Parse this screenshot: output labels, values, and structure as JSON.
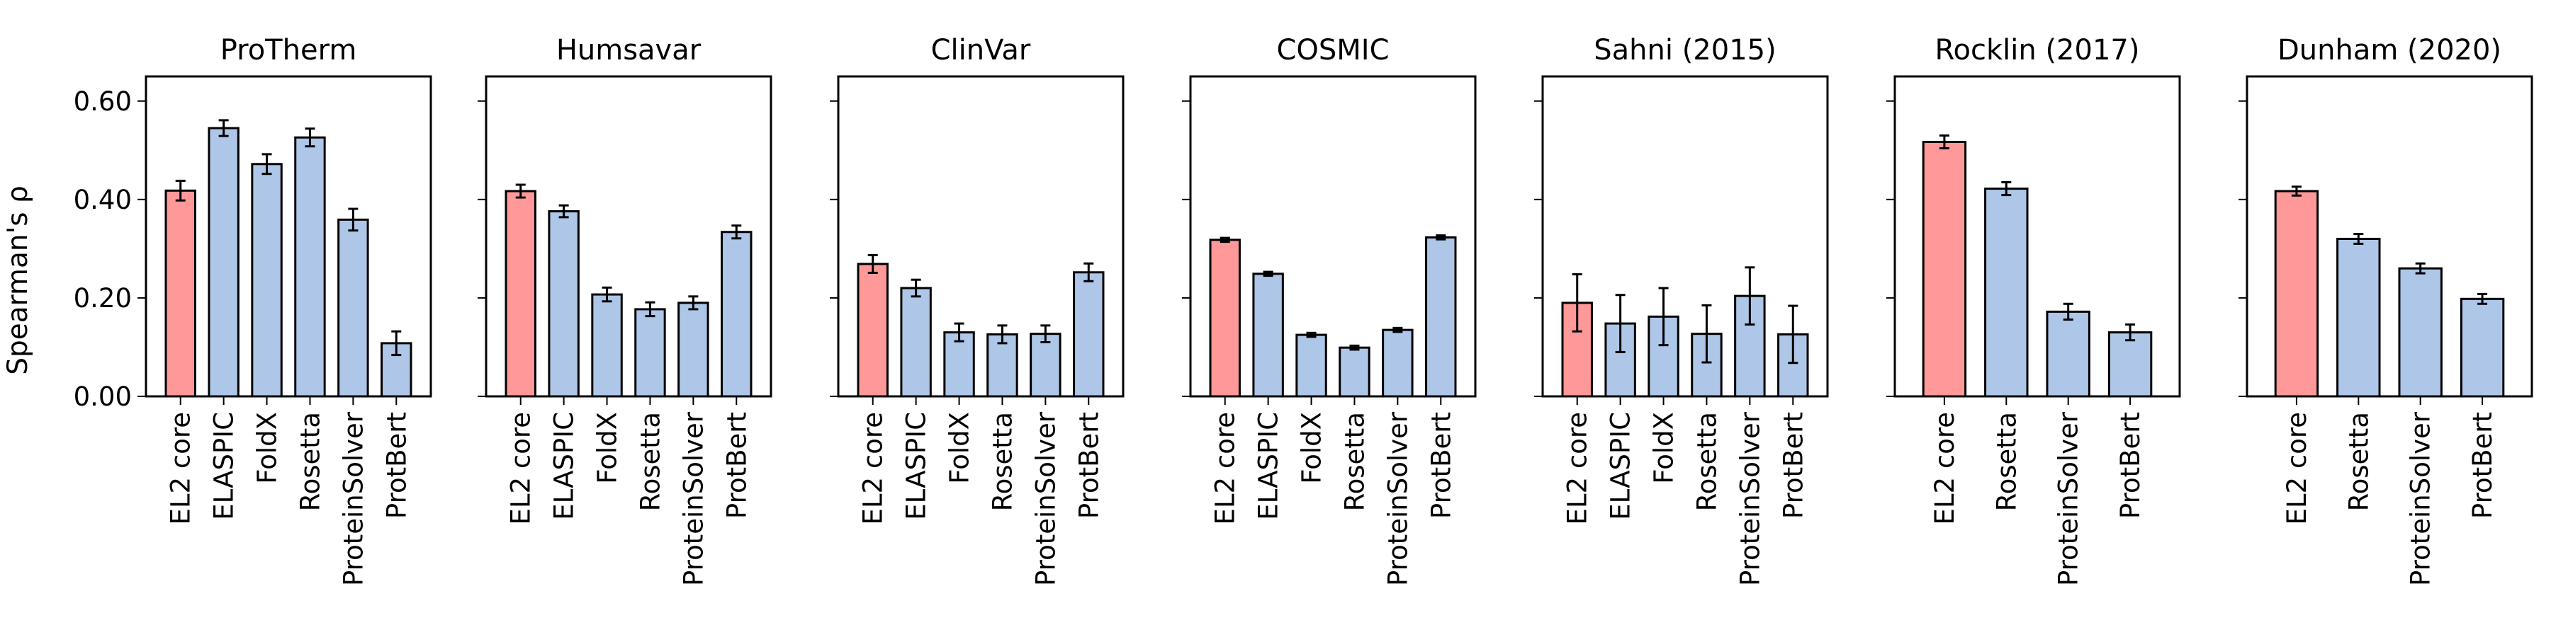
{
  "figure": {
    "ylabel": "Spearman's ρ",
    "yticks": [
      "0.00",
      "0.20",
      "0.40",
      "0.60"
    ]
  },
  "colors": {
    "highlight": "#FF9999",
    "default": "#AEC7E8",
    "edge": "#000000"
  },
  "chart_data": [
    {
      "type": "bar",
      "title": "ProTherm",
      "categories": [
        "EL2 core",
        "ELASPIC",
        "FoldX",
        "Rosetta",
        "ProteinSolver",
        "ProtBert"
      ],
      "values": [
        0.418,
        0.545,
        0.472,
        0.526,
        0.359,
        0.108
      ],
      "errors": [
        0.02,
        0.016,
        0.02,
        0.018,
        0.022,
        0.024
      ],
      "ylim": [
        0,
        0.65
      ],
      "grid": false
    },
    {
      "type": "bar",
      "title": "Humsavar",
      "categories": [
        "EL2 core",
        "ELASPIC",
        "FoldX",
        "Rosetta",
        "ProteinSolver",
        "ProtBert"
      ],
      "values": [
        0.417,
        0.376,
        0.207,
        0.177,
        0.19,
        0.334
      ],
      "errors": [
        0.013,
        0.012,
        0.014,
        0.014,
        0.013,
        0.013
      ],
      "ylim": [
        0,
        0.65
      ],
      "grid": false
    },
    {
      "type": "bar",
      "title": "ClinVar",
      "categories": [
        "EL2 core",
        "ELASPIC",
        "FoldX",
        "Rosetta",
        "ProteinSolver",
        "ProtBert"
      ],
      "values": [
        0.269,
        0.22,
        0.13,
        0.126,
        0.127,
        0.252
      ],
      "errors": [
        0.018,
        0.017,
        0.018,
        0.018,
        0.017,
        0.018
      ],
      "ylim": [
        0,
        0.65
      ],
      "grid": false
    },
    {
      "type": "bar",
      "title": "COSMIC",
      "categories": [
        "EL2 core",
        "ELASPIC",
        "FoldX",
        "Rosetta",
        "ProteinSolver",
        "ProtBert"
      ],
      "values": [
        0.318,
        0.249,
        0.125,
        0.099,
        0.135,
        0.323
      ],
      "errors": [
        0.004,
        0.004,
        0.004,
        0.004,
        0.004,
        0.004
      ],
      "ylim": [
        0,
        0.65
      ],
      "grid": false
    },
    {
      "type": "bar",
      "title": "Sahni (2015)",
      "categories": [
        "EL2 core",
        "ELASPIC",
        "FoldX",
        "Rosetta",
        "ProteinSolver",
        "ProtBert"
      ],
      "values": [
        0.19,
        0.148,
        0.162,
        0.127,
        0.204,
        0.126
      ],
      "errors": [
        0.058,
        0.058,
        0.058,
        0.058,
        0.058,
        0.058
      ],
      "ylim": [
        0,
        0.65
      ],
      "grid": false
    },
    {
      "type": "bar",
      "title": "Rocklin (2017)",
      "categories": [
        "EL2 core",
        "Rosetta",
        "ProteinSolver",
        "ProtBert"
      ],
      "values": [
        0.517,
        0.422,
        0.172,
        0.13
      ],
      "errors": [
        0.013,
        0.013,
        0.016,
        0.016
      ],
      "ylim": [
        0,
        0.65
      ],
      "grid": false
    },
    {
      "type": "bar",
      "title": "Dunham (2020)",
      "categories": [
        "EL2 core",
        "Rosetta",
        "ProteinSolver",
        "ProtBert"
      ],
      "values": [
        0.417,
        0.32,
        0.26,
        0.198
      ],
      "errors": [
        0.009,
        0.01,
        0.01,
        0.01
      ],
      "ylim": [
        0,
        0.65
      ],
      "grid": false
    }
  ]
}
